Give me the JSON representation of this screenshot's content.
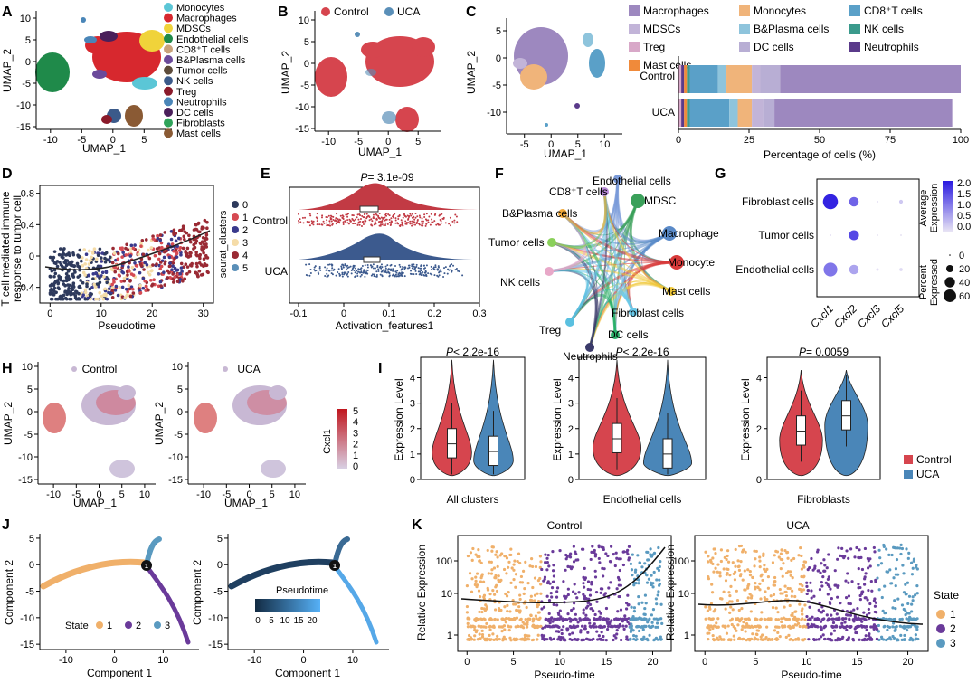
{
  "panels": {
    "A": {
      "letter": "A",
      "xlabel": "UMAP_1",
      "ylabel": "UMAP_2",
      "xticks": [
        -10,
        -5,
        0,
        5
      ],
      "yticks": [
        10,
        5,
        0,
        -5,
        -10,
        -15
      ],
      "legend": [
        {
          "label": "Monocytes",
          "color": "#5bc6d6"
        },
        {
          "label": "Macrophages",
          "color": "#d7282e"
        },
        {
          "label": "MDSCs",
          "color": "#f0d33a"
        },
        {
          "label": "Endothelial cells",
          "color": "#1f8a4a"
        },
        {
          "label": "CD8⁺T cells",
          "color": "#c9a27a"
        },
        {
          "label": "B&Plasma cells",
          "color": "#6b4a9b"
        },
        {
          "label": "Tumor cells",
          "color": "#5d4b3a"
        },
        {
          "label": "NK cells",
          "color": "#3b5a8a"
        },
        {
          "label": "Treg",
          "color": "#8a1a2a"
        },
        {
          "label": "Neutrophils",
          "color": "#4a86b8"
        },
        {
          "label": "DC cells",
          "color": "#4a1f5a"
        },
        {
          "label": "Fibroblasts",
          "color": "#2fa35a"
        },
        {
          "label": "Mast cells",
          "color": "#8a5a34"
        }
      ]
    },
    "B": {
      "letter": "B",
      "xlabel": "UMAP_1",
      "ylabel": "UMAP_2",
      "xticks": [
        -10,
        -5,
        0,
        5
      ],
      "yticks": [
        10,
        5,
        0,
        -5,
        -10,
        -15
      ],
      "legend": [
        {
          "label": "Control",
          "color": "#d6454e"
        },
        {
          "label": "UCA",
          "color": "#5a8fb8"
        }
      ]
    },
    "C": {
      "letter": "C",
      "xlabel": "UMAP_1",
      "ylabel": "UMAP_2",
      "xticks": [
        -5,
        0,
        5,
        10
      ],
      "yticks": [
        5,
        0,
        -5,
        -10
      ],
      "legend": [
        {
          "label": "Macrophages",
          "color": "#9d88bf"
        },
        {
          "label": "Monocytes",
          "color": "#f0b47a"
        },
        {
          "label": "CD8⁺T cells",
          "color": "#5aa0c8"
        },
        {
          "label": "MDSCs",
          "color": "#c2b4d8"
        },
        {
          "label": "B&Plasma cells",
          "color": "#8ec4dc"
        },
        {
          "label": "NK cells",
          "color": "#3a9a8c"
        },
        {
          "label": "Treg",
          "color": "#d8a8c8"
        },
        {
          "label": "DC cells",
          "color": "#b8aed4"
        },
        {
          "label": "Neutrophils",
          "color": "#5a3a8a"
        },
        {
          "label": "Mast cells",
          "color": "#f08a3a"
        }
      ],
      "bar_xlabel": "Percentage of cells (%)",
      "bar_xticks": [
        0,
        25,
        50,
        75,
        100
      ]
    },
    "D": {
      "letter": "D",
      "xlabel": "Pseudotime",
      "ylabel_line1": "T cell mediated immune",
      "ylabel_line2": "response to tumor cell",
      "xticks": [
        0,
        10,
        20,
        30
      ],
      "yticks": [
        0.8,
        0.4,
        0.0,
        -0.4
      ],
      "legend_title": "seurat_clusters",
      "legend": [
        {
          "label": "0",
          "color": "#2e3a5c"
        },
        {
          "label": "1",
          "color": "#d64a52"
        },
        {
          "label": "2",
          "color": "#3a3a8c"
        },
        {
          "label": "3",
          "color": "#f5dca8"
        },
        {
          "label": "4",
          "color": "#9a2a34"
        },
        {
          "label": "5",
          "color": "#5a8fb8"
        }
      ]
    },
    "E": {
      "letter": "E",
      "p_label": "P",
      "p_value": "= 3.1e-09",
      "xlabel": "Activation_features1",
      "xticks": [
        -0.1,
        0.0,
        0.1,
        0.2,
        0.3
      ],
      "groups": [
        "Control",
        "UCA"
      ],
      "control_color": "#c23a44",
      "uca_color": "#3c5a8e"
    },
    "F": {
      "letter": "F",
      "nodes": [
        {
          "label": "Endothelial cells",
          "color": "#7a9ad8"
        },
        {
          "label": "MDSC",
          "color": "#3aa05a"
        },
        {
          "label": "Macrophage",
          "color": "#5a8ac8"
        },
        {
          "label": "Monocyte",
          "color": "#d83a3a"
        },
        {
          "label": "Mast cells",
          "color": "#f0c83a"
        },
        {
          "label": "Fibroblast cells",
          "color": "#6ac8e8"
        },
        {
          "label": "DC cells",
          "color": "#2ab06a"
        },
        {
          "label": "Neutrophils",
          "color": "#3a3a6a"
        },
        {
          "label": "Treg",
          "color": "#5ac0e0"
        },
        {
          "label": "NK cells",
          "color": "#e8a8c8"
        },
        {
          "label": "Tumor cells",
          "color": "#8ad05a"
        },
        {
          "label": "B&Plasma cells",
          "color": "#f0a83a"
        },
        {
          "label": "CD8⁺T cells",
          "color": "#b88ad8"
        }
      ]
    },
    "G": {
      "letter": "G",
      "rows": [
        "Fibroblast cells",
        "Tumor cells",
        "Endothelial cells"
      ],
      "cols": [
        "Cxcl1",
        "Cxcl2",
        "Cxcl3",
        "Cxcl5"
      ],
      "avg_title1": "Average",
      "avg_title2": "Expression",
      "avg_ticks": [
        "2.0",
        "1.5",
        "1.0",
        "0.5",
        "0.0"
      ],
      "pct_title1": "Percent",
      "pct_title2": "Expressed",
      "pct_ticks": [
        "0",
        "20",
        "40",
        "60"
      ]
    },
    "H": {
      "letter": "H",
      "left_title": "Control",
      "right_title": "UCA",
      "xlabel": "UMAP_1",
      "ylabel": "UMAP_2",
      "xticks": [
        -10,
        -5,
        0,
        5,
        10
      ],
      "yticks": [
        10,
        5,
        0,
        -5,
        -10,
        -15
      ],
      "scale_title": "Cxcl1",
      "scale_ticks": [
        "5",
        "4",
        "3",
        "2",
        "1",
        "0"
      ]
    },
    "I": {
      "letter": "I",
      "ylabel": "Expression Level",
      "subplots": [
        {
          "p_value": "< 2.2e-16",
          "title": "All clusters"
        },
        {
          "p_value": "< 2.2e-16",
          "title": "Endothelial cells"
        },
        {
          "p_value": "= 0.0059",
          "title": "Fibroblasts"
        }
      ],
      "p_label": "P",
      "legend": [
        {
          "label": "Control",
          "color": "#d6454e"
        },
        {
          "label": "UCA",
          "color": "#4a86b8"
        }
      ]
    },
    "J": {
      "letter": "J",
      "xlabel": "Component 1",
      "ylabel": "Component 2",
      "xticks": [
        -10,
        0,
        10
      ],
      "yticks": [
        5,
        0,
        -5,
        -10,
        -15
      ],
      "state_title": "State",
      "states": [
        {
          "label": "1",
          "color": "#f0b06a"
        },
        {
          "label": "2",
          "color": "#6a3a9a"
        },
        {
          "label": "3",
          "color": "#5a9ac0"
        }
      ],
      "pseudotime_title": "Pseudotime",
      "pseudotime_ticks": [
        "0",
        "5",
        "10",
        "15",
        "20"
      ]
    },
    "K": {
      "letter": "K",
      "left_title": "Control",
      "right_title": "UCA",
      "xlabel": "Pseudo-time",
      "ylabel": "Relative Expression",
      "xticks": [
        0,
        5,
        10,
        15,
        20
      ],
      "yticks": [
        "100",
        "10",
        "1"
      ],
      "state_title": "State",
      "states": [
        {
          "label": "1",
          "color": "#f0b06a"
        },
        {
          "label": "2",
          "color": "#6a3a9a"
        },
        {
          "label": "3",
          "color": "#5a9ac0"
        }
      ]
    }
  },
  "chart_data": [
    {
      "id": "C-bar",
      "type": "bar",
      "orientation": "horizontal-stacked",
      "categories": [
        "Control",
        "UCA"
      ],
      "series": [
        {
          "name": "Treg",
          "values": [
            1,
            1
          ]
        },
        {
          "name": "Neutrophils",
          "values": [
            1,
            1
          ]
        },
        {
          "name": "Mast cells",
          "values": [
            1,
            1
          ]
        },
        {
          "name": "NK cells",
          "values": [
            1,
            1
          ]
        },
        {
          "name": "CD8⁺T cells",
          "values": [
            10,
            14
          ]
        },
        {
          "name": "B&Plasma cells",
          "values": [
            3,
            3
          ]
        },
        {
          "name": "Monocytes",
          "values": [
            9,
            5
          ]
        },
        {
          "name": "MDSCs",
          "values": [
            3,
            4
          ]
        },
        {
          "name": "DC cells",
          "values": [
            7,
            4
          ]
        },
        {
          "name": "Macrophages",
          "values": [
            64,
            63
          ]
        }
      ],
      "xlabel": "Percentage of cells (%)",
      "xlim": [
        0,
        100
      ]
    },
    {
      "id": "G-dot",
      "type": "scatter",
      "subtype": "dotplot",
      "rows": [
        "Fibroblast cells",
        "Tumor cells",
        "Endothelial cells"
      ],
      "cols": [
        "Cxcl1",
        "Cxcl2",
        "Cxcl3",
        "Cxcl5"
      ],
      "avg_expression": [
        [
          2.1,
          1.4,
          0.05,
          0.3
        ],
        [
          0.05,
          1.7,
          0.0,
          0.0
        ],
        [
          1.2,
          0.7,
          0.05,
          0.1
        ]
      ],
      "pct_expressed": [
        [
          62,
          25,
          1,
          4
        ],
        [
          1,
          28,
          0,
          0
        ],
        [
          52,
          25,
          2,
          3
        ]
      ]
    },
    {
      "id": "I-violin",
      "type": "violin",
      "groups": [
        "All clusters",
        "Endothelial cells",
        "Fibroblasts"
      ],
      "series": [
        {
          "name": "Control",
          "median": [
            1.4,
            1.6,
            1.9
          ]
        },
        {
          "name": "UCA",
          "median": [
            1.1,
            1.0,
            2.5
          ]
        }
      ],
      "ylim": [
        0,
        4.8
      ]
    },
    {
      "id": "E-raincloud",
      "type": "violin",
      "groups": [
        "Control",
        "UCA"
      ],
      "median": [
        0.04,
        0.07
      ],
      "xlim": [
        -0.12,
        0.3
      ]
    }
  ]
}
